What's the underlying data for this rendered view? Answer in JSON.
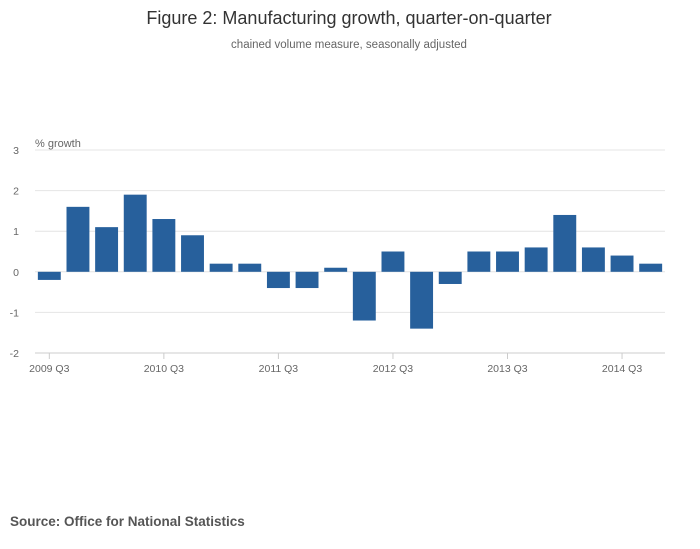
{
  "chart_data": {
    "type": "bar",
    "title": "Figure 2: Manufacturing growth, quarter-on-quarter",
    "subtitle": "chained volume measure, seasonally adjusted",
    "xlabel": "",
    "ylabel": "% growth",
    "ylim": [
      -2,
      3
    ],
    "yticks": [
      3,
      2,
      1,
      0,
      -1,
      -2
    ],
    "yticklabels": [
      "3",
      "2",
      "1",
      "0",
      "-1",
      "-2"
    ],
    "grid": true,
    "categories": [
      "2009 Q3",
      "2009 Q4",
      "2010 Q1",
      "2010 Q2",
      "2010 Q3",
      "2010 Q4",
      "2011 Q1",
      "2011 Q2",
      "2011 Q3",
      "2011 Q4",
      "2012 Q1",
      "2012 Q2",
      "2012 Q3",
      "2012 Q4",
      "2013 Q1",
      "2013 Q2",
      "2013 Q3",
      "2013 Q4",
      "2014 Q1",
      "2014 Q2",
      "2014 Q3",
      "2014 Q4"
    ],
    "xticklabels": [
      "2009 Q3",
      "2010 Q3",
      "2011 Q3",
      "2012 Q3",
      "2013 Q3",
      "2014 Q3"
    ],
    "values": [
      -0.2,
      1.6,
      1.1,
      1.9,
      1.3,
      0.9,
      0.2,
      0.2,
      -0.4,
      -0.4,
      0.1,
      -1.2,
      0.5,
      -1.4,
      -0.3,
      0.5,
      0.5,
      0.6,
      1.4,
      0.6,
      0.4,
      0.2
    ],
    "bar_color": "#27609c"
  },
  "source_text": "Source: Office for National Statistics"
}
